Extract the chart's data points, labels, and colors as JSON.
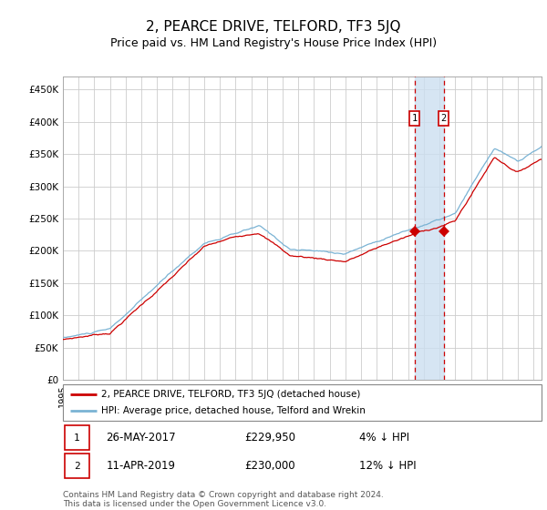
{
  "title": "2, PEARCE DRIVE, TELFORD, TF3 5JQ",
  "subtitle": "Price paid vs. HM Land Registry's House Price Index (HPI)",
  "title_fontsize": 11,
  "subtitle_fontsize": 9,
  "ylabel_ticks": [
    "£0",
    "£50K",
    "£100K",
    "£150K",
    "£200K",
    "£250K",
    "£300K",
    "£350K",
    "£400K",
    "£450K"
  ],
  "ytick_values": [
    0,
    50000,
    100000,
    150000,
    200000,
    250000,
    300000,
    350000,
    400000,
    450000
  ],
  "ylim": [
    0,
    470000
  ],
  "xlim_start": 1995.0,
  "xlim_end": 2025.5,
  "hpi_color": "#7ab3d4",
  "price_color": "#cc0000",
  "marker_color": "#cc0000",
  "transaction1_date": 2017.4,
  "transaction1_price": 229950,
  "transaction2_date": 2019.27,
  "transaction2_price": 230000,
  "label1_date": "26-MAY-2017",
  "label1_amount": "£229,950",
  "label1_hpi": "4% ↓ HPI",
  "label2_date": "11-APR-2019",
  "label2_amount": "£230,000",
  "label2_hpi": "12% ↓ HPI",
  "legend1": "2, PEARCE DRIVE, TELFORD, TF3 5JQ (detached house)",
  "legend2": "HPI: Average price, detached house, Telford and Wrekin",
  "footnote1": "Contains HM Land Registry data © Crown copyright and database right 2024.",
  "footnote2": "This data is licensed under the Open Government Licence v3.0.",
  "background_color": "#ffffff",
  "grid_color": "#cccccc",
  "shade_color": "#ccdff0"
}
